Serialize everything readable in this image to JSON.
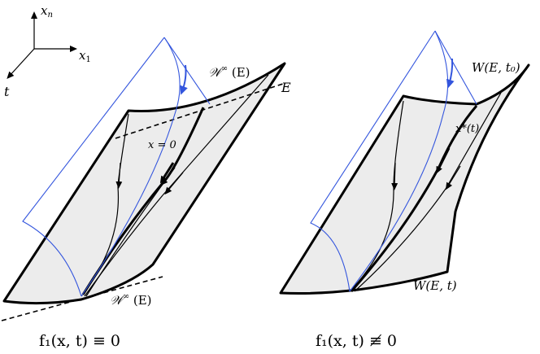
{
  "axes": {
    "xn_label": "x",
    "xn_sub": "n",
    "x1_label": "x",
    "x1_sub": "1",
    "t_label": "t"
  },
  "left_panel": {
    "w_inf_top_pre": "𝒲",
    "w_inf_top_sup": "∞",
    "w_inf_top_post": " (E)",
    "e_label": "E",
    "x_zero_label": "x = 0",
    "w_inf_bottom_pre": "𝒲",
    "w_inf_bottom_sup": "∞",
    "w_inf_bottom_post": " (E)",
    "caption": "f₁(x, t) ≡ 0"
  },
  "right_panel": {
    "w_top_label": "W(E, t₀)",
    "x_star_label": "x*(t)",
    "w_bottom_label": "W(E, t)",
    "caption": "f₁(x, t) ≢ 0"
  },
  "colors": {
    "ink": "#000000",
    "fill": "#ececec",
    "accent": "#3355dd"
  }
}
